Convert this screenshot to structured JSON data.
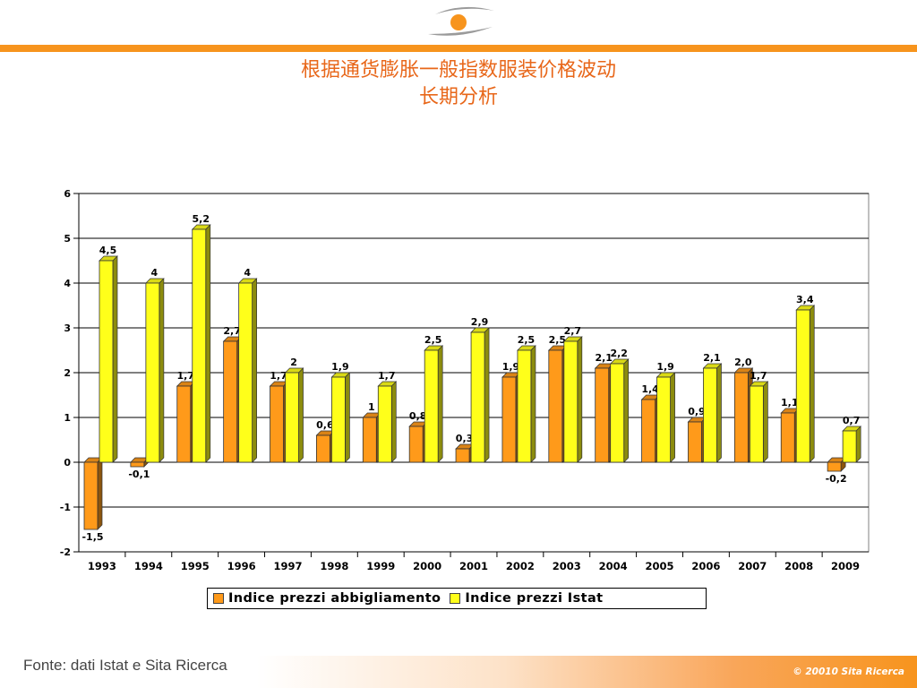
{
  "header": {
    "title_line1": "根据通货膨胀一般指数服装价格波动",
    "title_line2": "长期分析"
  },
  "colors": {
    "accent": "#f7941d",
    "title": "#e8671a",
    "series1": "#ff9a1a",
    "series2": "#ffff1a"
  },
  "chart_data": {
    "type": "bar",
    "categories": [
      "1993",
      "1994",
      "1995",
      "1996",
      "1997",
      "1998",
      "1999",
      "2000",
      "2001",
      "2002",
      "2003",
      "2004",
      "2005",
      "2006",
      "2007",
      "2008",
      "2009"
    ],
    "series": [
      {
        "name": "Indice prezzi abbigliamento",
        "values": [
          -1.5,
          -0.1,
          1.7,
          2.7,
          1.7,
          0.6,
          1,
          0.8,
          0.3,
          1.9,
          2.5,
          2.1,
          1.4,
          0.9,
          2.0,
          1.1,
          -0.2
        ],
        "labels": [
          "-1,5",
          "-0,1",
          "1,7",
          "2,7",
          "1,7",
          "0,6",
          "1",
          "0,8",
          "0,3",
          "1,9",
          "2,5",
          "2,1",
          "1,4",
          "0,9",
          "2,0",
          "1,1",
          "-0,2"
        ]
      },
      {
        "name": "Indice prezzi Istat",
        "values": [
          4.5,
          4,
          5.2,
          4,
          2,
          1.9,
          1.7,
          2.5,
          2.9,
          2.5,
          2.7,
          2.2,
          1.9,
          2.1,
          1.7,
          3.4,
          0.7
        ],
        "labels": [
          "4,5",
          "4",
          "5,2",
          "4",
          "2",
          "1,9",
          "1,7",
          "2,5",
          "2,9",
          "2,5",
          "2,7",
          "2,2",
          "1,9",
          "2,1",
          "1,7",
          "3,4",
          "0,7"
        ]
      }
    ],
    "ylim": [
      -2,
      6
    ],
    "yticks": [
      "-2",
      "-1",
      "0",
      "1",
      "2",
      "3",
      "4",
      "5",
      "6"
    ],
    "grid": true,
    "legend_position": "bottom"
  },
  "footer": {
    "source": "Fonte: dati Istat e Sita Ricerca",
    "copyright": "© 20010 Sita Ricerca"
  }
}
